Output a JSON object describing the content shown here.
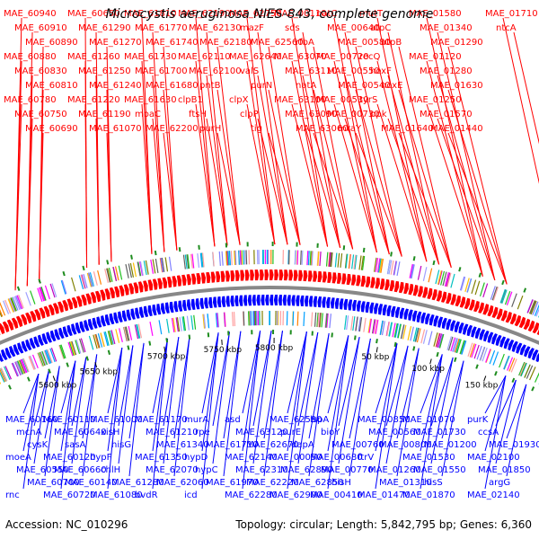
{
  "title": "Microcystis aeruginosa NIES-843, complete genome",
  "footer": {
    "accession": "Accession: NC_010296",
    "summary": "Topology: circular; Length: 5,842,795 bp; Genes: 6,360"
  },
  "colors": {
    "forward": "#ff0000",
    "reverse": "#0000ff",
    "backbone": "#888888",
    "rna": "#1e8c1e"
  },
  "ticks": [
    "5600 kbp",
    "5650 kbp",
    "5700 kbp",
    "5750 kbp",
    "5800 kbp",
    "50 kbp",
    "100 kbp",
    "150 kbp"
  ],
  "top_labels": [
    "MAE_60940",
    "MAE_60910",
    "MAE_60890",
    "MAE_60880",
    "MAE_60830",
    "MAE_60810",
    "MAE_60780",
    "MAE_60750",
    "MAE_60690",
    "MAE_60650",
    "MAE_61290",
    "MAE_61270",
    "MAE_61260",
    "MAE_61250",
    "MAE_61240",
    "MAE_61220",
    "MAE_61190",
    "MAE_61070",
    "MAE_61810",
    "MAE_61770",
    "MAE_61740",
    "MAE_61730",
    "MAE_61700",
    "MAE_61680",
    "MAE_61630",
    "moaC",
    "MAE_62200",
    "MAE_62190",
    "MAE_62130",
    "MAE_62180",
    "MAE_62110",
    "MAE_62100",
    "pntB",
    "clpB1",
    "ftsH",
    "purH",
    "MAE_62750",
    "mazF",
    "MAE_62560",
    "MAE_62640",
    "valS",
    "purN",
    "clpX",
    "clpP",
    "tig",
    "MAE_00110",
    "sds",
    "rfbA",
    "MAE_63070",
    "MAE_63110",
    "natA",
    "MAE_63100",
    "MAE_63090",
    "MAE_63060",
    "natC",
    "MAE_00640",
    "MAE_00580",
    "MAE_00720",
    "MAE_00550",
    "MAE_00540",
    "MAE_00530",
    "MAE_00730",
    "mraY",
    "mutT",
    "atpC",
    "atpB",
    "recQ",
    "hoxF",
    "hoxE",
    "tyrS",
    "ppk",
    "MAE_01640",
    "MAE_01580",
    "MAE_01340",
    "MAE_01290",
    "MAE_01120",
    "MAE_01280",
    "MAE_01630",
    "MAE_01250",
    "MAE_01570",
    "MAE_01440",
    "MAE_01710",
    "ntcA"
  ],
  "bottom_labels": [
    "MAE_60160",
    "mcnA",
    "cysK",
    "moeA",
    "MAE_60550",
    "MAE_60700",
    "rnc",
    "MAE_60110",
    "MAE_60640",
    "sasA",
    "MAE_60120",
    "MAE_60660",
    "MAE_60140",
    "MAE_60720",
    "MAE_61000",
    "xisH",
    "hisG",
    "hypF",
    "chlH",
    "MAE_61280",
    "MAE_61080",
    "MAE_61170",
    "MAE_61210",
    "MAE_61340",
    "MAE_61350",
    "MAE_62070",
    "MAE_62060",
    "bvdR",
    "murA",
    "rpe",
    "MAE_61710",
    "hypD",
    "hypC",
    "MAE_61970",
    "icd",
    "asd",
    "MAE_63120",
    "MAE_62670",
    "MAE_62140",
    "MAE_62310",
    "MAE_62220",
    "MAE_62280",
    "MAE_62590",
    "purE",
    "dapA",
    "MAE_00050",
    "MAE_62890",
    "MAE_62850",
    "MAE_62900",
    "lspA",
    "bioY",
    "MAE_00760",
    "MAE_00680",
    "MAE_00770",
    "hisH",
    "MAE_00410",
    "MAE_00850",
    "MAE_00560",
    "MAE_00800",
    "ftrV",
    "MAE_01260",
    "MAE_01310",
    "MAE_01470",
    "MAE_01070",
    "MAE_01730",
    "MAE_01200",
    "MAE_01530",
    "MAE_01550",
    "hisS",
    "MAE_01870",
    "purK",
    "ccsA",
    "MAE_01930",
    "MAE_02100",
    "MAE_01850",
    "argG",
    "MAE_02140"
  ]
}
